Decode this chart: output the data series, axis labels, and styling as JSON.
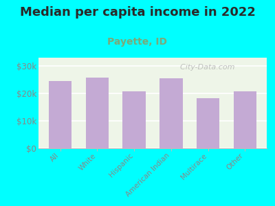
{
  "title": "Median per capita income in 2022",
  "subtitle": "Payette, ID",
  "categories": [
    "All",
    "White",
    "Hispanic",
    "American Indian",
    "Multirace",
    "Other"
  ],
  "values": [
    24500,
    25800,
    20800,
    25600,
    18200,
    20700
  ],
  "bar_color": "#c4aad4",
  "background_color": "#00ffff",
  "plot_bg_color": "#eef5e8",
  "title_color": "#2a2a2a",
  "subtitle_color": "#7aaa7a",
  "tick_label_color": "#888888",
  "ytick_labels": [
    "$0",
    "$10k",
    "$20k",
    "$30k"
  ],
  "ytick_values": [
    0,
    10000,
    20000,
    30000
  ],
  "ylim": [
    0,
    33000
  ],
  "watermark": "  City-Data.com",
  "title_fontsize": 13,
  "subtitle_fontsize": 10,
  "watermark_fontsize": 8
}
